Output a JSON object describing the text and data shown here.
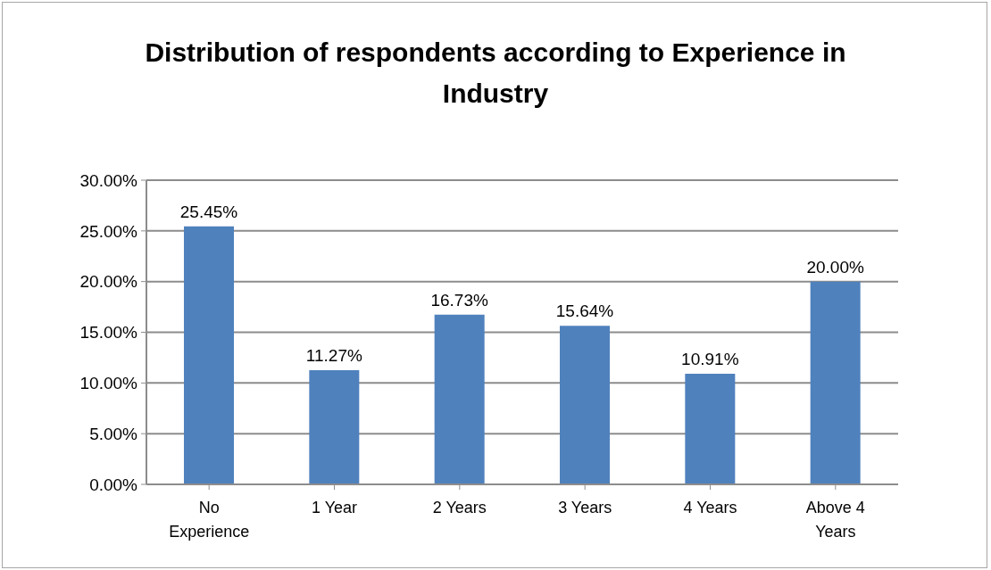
{
  "chart_data": {
    "type": "bar",
    "title": "Distribution of respondents according to Experience in Industry",
    "categories": [
      "No Experience",
      "1 Year",
      "2 Years",
      "3 Years",
      "4 Years",
      "Above 4 Years"
    ],
    "values": [
      25.45,
      11.27,
      16.73,
      15.64,
      10.91,
      20.0
    ],
    "value_labels": [
      "25.45%",
      "11.27%",
      "16.73%",
      "15.64%",
      "10.91%",
      "20.00%"
    ],
    "color": "#4f81bd",
    "ylim": [
      0,
      30
    ],
    "yticks": [
      {
        "value": 0,
        "label": "0.00%"
      },
      {
        "value": 5,
        "label": "5.00%"
      },
      {
        "value": 10,
        "label": "10.00%"
      },
      {
        "value": 15,
        "label": "15.00%"
      },
      {
        "value": 20,
        "label": "20.00%"
      },
      {
        "value": 25,
        "label": "25.00%"
      },
      {
        "value": 30,
        "label": "30.00%"
      }
    ],
    "grid": "y"
  }
}
